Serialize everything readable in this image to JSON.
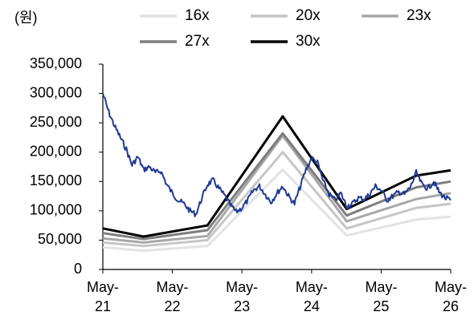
{
  "chart_data": {
    "type": "line",
    "unit_label": "(원)",
    "ylim": [
      0,
      350000
    ],
    "y_ticks": [
      0,
      50000,
      100000,
      150000,
      200000,
      250000,
      300000,
      350000
    ],
    "y_tick_labels": [
      "0",
      "50,000",
      "100,000",
      "150,000",
      "200,000",
      "250,000",
      "300,000",
      "350,000"
    ],
    "x_ticks": [
      "2021-05",
      "2022-05",
      "2023-05",
      "2024-05",
      "2025-05",
      "2026-05"
    ],
    "x_tick_labels": [
      [
        "May-",
        "21"
      ],
      [
        "May-",
        "22"
      ],
      [
        "May-",
        "23"
      ],
      [
        "May-",
        "24"
      ],
      [
        "May-",
        "25"
      ],
      [
        "May-",
        "26"
      ]
    ],
    "legend_position": "top",
    "band_x": [
      "2021-05",
      "2021-12",
      "2022-11",
      "2023-12",
      "2024-11",
      "2025-11",
      "2026-05"
    ],
    "series": [
      {
        "name": "16x",
        "color": "#e3e3e3",
        "values": [
          38000,
          32000,
          40000,
          170000,
          58000,
          85000,
          90000
        ]
      },
      {
        "name": "20x",
        "color": "#c6c6c6",
        "values": [
          46000,
          40000,
          50000,
          200000,
          70000,
          105000,
          112000
        ]
      },
      {
        "name": "23x",
        "color": "#a7a7a7",
        "values": [
          53000,
          46000,
          57000,
          228000,
          82000,
          120000,
          130000
        ]
      },
      {
        "name": "27x",
        "color": "#7d7d7d",
        "values": [
          62000,
          52000,
          67000,
          232000,
          92000,
          140000,
          150000
        ]
      },
      {
        "name": "30x",
        "color": "#000000",
        "values": [
          70000,
          56000,
          75000,
          261000,
          103000,
          160000,
          169000
        ]
      }
    ],
    "price_series": {
      "color": "#1f3a93",
      "points": [
        [
          "2021-05",
          300000
        ],
        [
          "2021-06",
          268000
        ],
        [
          "2021-07",
          245000
        ],
        [
          "2021-08",
          225000
        ],
        [
          "2021-09",
          205000
        ],
        [
          "2021-10",
          178000
        ],
        [
          "2021-11",
          192000
        ],
        [
          "2021-12",
          170000
        ],
        [
          "2022-01",
          175000
        ],
        [
          "2022-02",
          165000
        ],
        [
          "2022-03",
          168000
        ],
        [
          "2022-04",
          145000
        ],
        [
          "2022-05",
          130000
        ],
        [
          "2022-06",
          118000
        ],
        [
          "2022-07",
          112000
        ],
        [
          "2022-08",
          100000
        ],
        [
          "2022-09",
          94000
        ],
        [
          "2022-10",
          120000
        ],
        [
          "2022-11",
          145000
        ],
        [
          "2022-12",
          152000
        ],
        [
          "2023-01",
          138000
        ],
        [
          "2023-02",
          125000
        ],
        [
          "2023-03",
          110000
        ],
        [
          "2023-04",
          98000
        ],
        [
          "2023-05",
          105000
        ],
        [
          "2023-06",
          118000
        ],
        [
          "2023-07",
          135000
        ],
        [
          "2023-08",
          142000
        ],
        [
          "2023-09",
          128000
        ],
        [
          "2023-10",
          115000
        ],
        [
          "2023-11",
          130000
        ],
        [
          "2023-12",
          142000
        ],
        [
          "2024-01",
          125000
        ],
        [
          "2024-02",
          112000
        ],
        [
          "2024-03",
          140000
        ],
        [
          "2024-04",
          170000
        ],
        [
          "2024-05",
          190000
        ],
        [
          "2024-06",
          182000
        ],
        [
          "2024-07",
          150000
        ],
        [
          "2024-08",
          128000
        ],
        [
          "2024-09",
          118000
        ],
        [
          "2024-10",
          130000
        ],
        [
          "2024-11",
          108000
        ],
        [
          "2024-12",
          112000
        ],
        [
          "2025-01",
          122000
        ],
        [
          "2025-02",
          120000
        ],
        [
          "2025-03",
          128000
        ],
        [
          "2025-04",
          142000
        ],
        [
          "2025-05",
          135000
        ],
        [
          "2025-06",
          118000
        ],
        [
          "2025-07",
          125000
        ],
        [
          "2025-08",
          132000
        ],
        [
          "2025-09",
          128000
        ],
        [
          "2025-10",
          140000
        ],
        [
          "2025-11",
          165000
        ],
        [
          "2025-12",
          145000
        ],
        [
          "2026-01",
          138000
        ],
        [
          "2026-02",
          150000
        ],
        [
          "2026-03",
          132000
        ],
        [
          "2026-04",
          122000
        ],
        [
          "2026-05",
          118000
        ]
      ]
    }
  }
}
